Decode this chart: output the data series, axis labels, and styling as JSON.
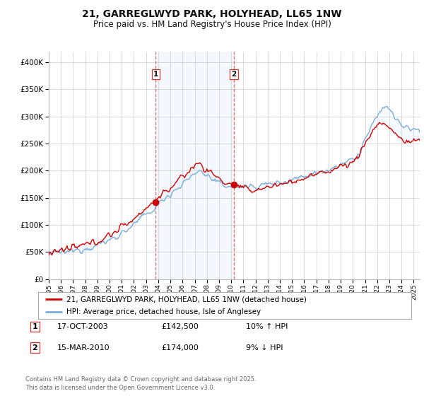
{
  "title": "21, GARREGLWYD PARK, HOLYHEAD, LL65 1NW",
  "subtitle": "Price paid vs. HM Land Registry's House Price Index (HPI)",
  "ylim": [
    0,
    420000
  ],
  "yticks": [
    0,
    50000,
    100000,
    150000,
    200000,
    250000,
    300000,
    350000,
    400000
  ],
  "xlim_start": 1995.0,
  "xlim_end": 2025.5,
  "purchase1_year": 2003.79,
  "purchase1_price": 142500,
  "purchase1_label": "1",
  "purchase2_year": 2010.21,
  "purchase2_price": 174000,
  "purchase2_label": "2",
  "legend_line1": "21, GARREGLWYD PARK, HOLYHEAD, LL65 1NW (detached house)",
  "legend_line2": "HPI: Average price, detached house, Isle of Anglesey",
  "table_row1": [
    "1",
    "17-OCT-2003",
    "£142,500",
    "10% ↑ HPI"
  ],
  "table_row2": [
    "2",
    "15-MAR-2010",
    "£174,000",
    "9% ↓ HPI"
  ],
  "footer": "Contains HM Land Registry data © Crown copyright and database right 2025.\nThis data is licensed under the Open Government Licence v3.0.",
  "line_color_red": "#cc0000",
  "line_color_blue": "#7aaddb",
  "shade_color": "#ddeeff",
  "vline_color": "#e05050",
  "bg_color": "#ffffff",
  "grid_color": "#cccccc",
  "title_color": "#111111"
}
